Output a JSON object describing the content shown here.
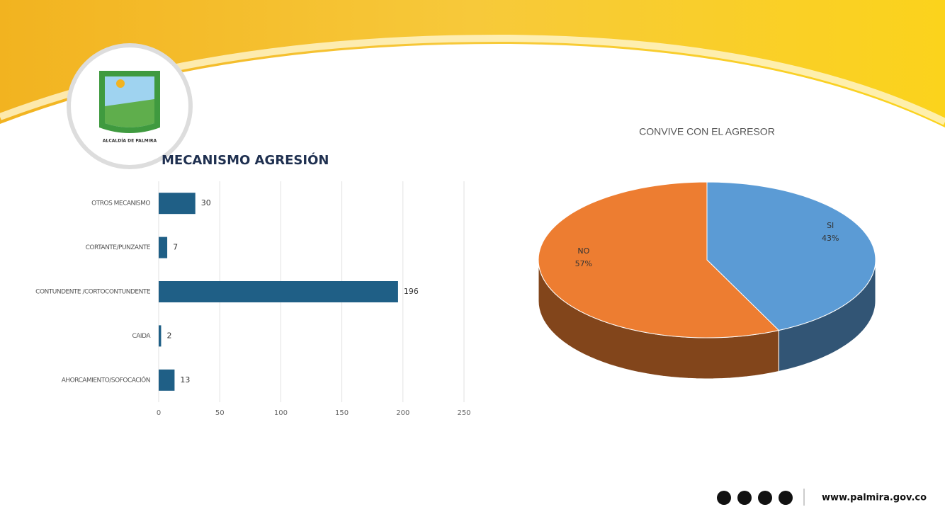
{
  "logo": {
    "text": "ALCALDÍA DE PALMIRA"
  },
  "footer": {
    "website": "www.palmira.gov.co"
  },
  "chart_data": [
    {
      "type": "bar",
      "orientation": "horizontal",
      "title": "MECANISMO AGRESIÓN",
      "categories": [
        "OTROS MECANISMO",
        "CORTANTE/PUNZANTE",
        "CONTUNDENTE /CORTOCONTUNDENTE",
        "CAIDA",
        "AHORCAMIENTO/SOFOCACIÓN"
      ],
      "values": [
        30,
        7,
        196,
        2,
        13
      ],
      "color": "#1f5f86",
      "xlim": [
        0,
        250
      ],
      "xticks": [
        0,
        50,
        100,
        150,
        200,
        250
      ],
      "grid": true
    },
    {
      "type": "pie",
      "title": "CONVIVE CON EL AGRESOR",
      "categories": [
        "SI",
        "NO"
      ],
      "values": [
        43,
        57
      ],
      "value_labels": [
        "43%",
        "57%"
      ],
      "colors": [
        "#5b9bd5",
        "#ed7d31"
      ]
    }
  ]
}
